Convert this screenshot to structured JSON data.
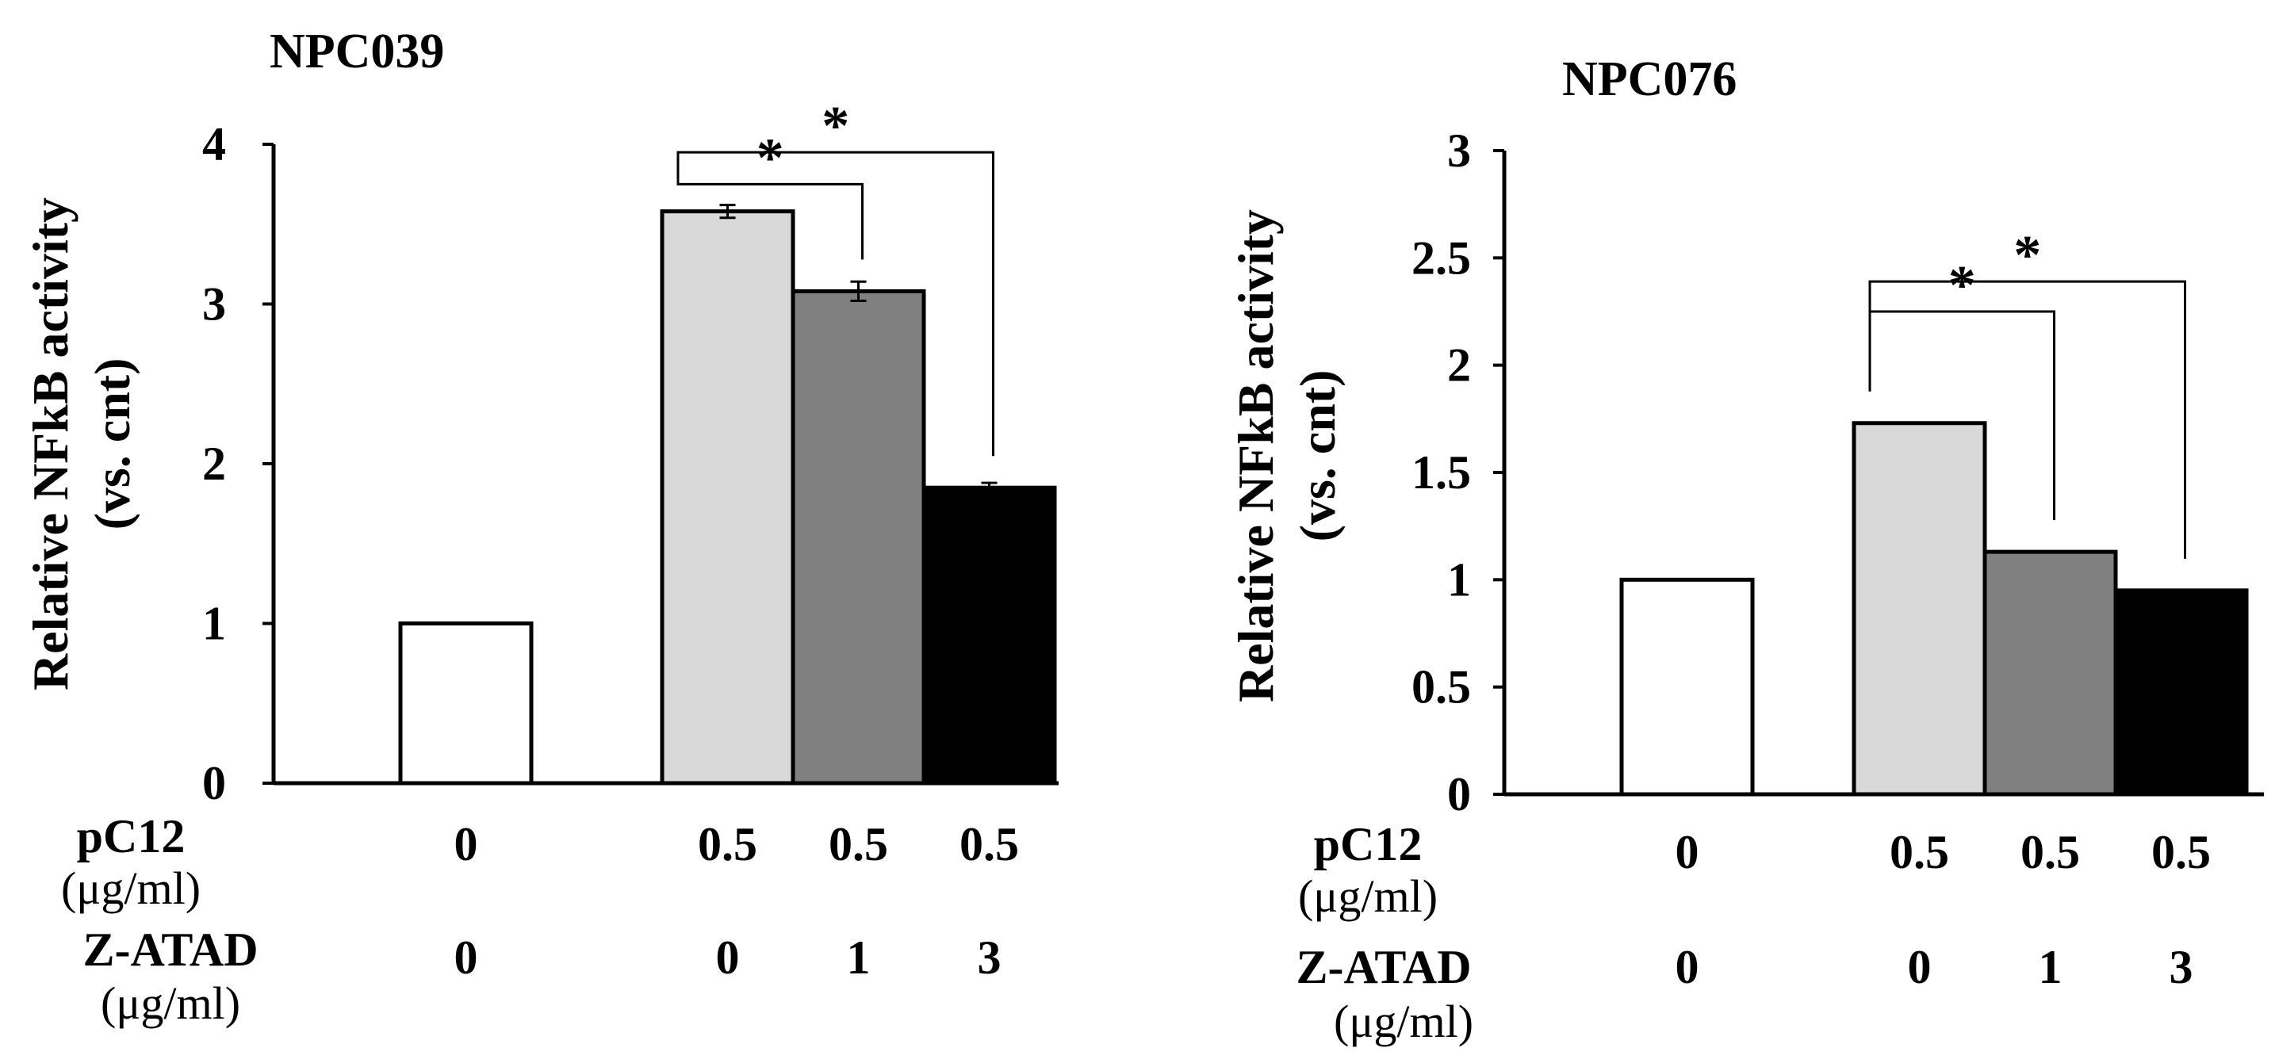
{
  "chart_data": [
    {
      "type": "bar",
      "title": "NPC039",
      "ylabel_line1": "Relative NFkB activity",
      "ylabel_line2": "(vs. cnt)",
      "ylim": [
        0,
        4
      ],
      "yticks": [
        "0",
        "1",
        "2",
        "3",
        "4"
      ],
      "bars": [
        {
          "name": "control",
          "value": 1.0,
          "error": 0,
          "color": "#ffffff"
        },
        {
          "name": "pC12 0.5",
          "value": 3.58,
          "error": 0.04,
          "color": "#d9d9d9"
        },
        {
          "name": "pC12 0.5 + Z-ATAD 1",
          "value": 3.08,
          "error": 0.06,
          "color": "#808080"
        },
        {
          "name": "pC12 0.5 + Z-ATAD 3",
          "value": 1.85,
          "error": 0.03,
          "color": "#000000"
        }
      ],
      "rows": [
        {
          "label": "pC12",
          "unit": "(μg/ml)",
          "values": [
            "0",
            "0.5",
            "0.5",
            "0.5"
          ]
        },
        {
          "label": "Z-ATAD",
          "unit": "(μg/ml)",
          "values": [
            "0",
            "0",
            "1",
            "3"
          ]
        }
      ],
      "significance": [
        {
          "from_bar": 1,
          "to_bar": 2,
          "label": "*",
          "level": 3.75
        },
        {
          "from_bar": 1,
          "to_bar": 3,
          "label": "*",
          "level": 3.95
        }
      ]
    },
    {
      "type": "bar",
      "title": "NPC076",
      "ylabel_line1": "Relative NFkB activity",
      "ylabel_line2": "(vs. cnt)",
      "ylim": [
        0,
        3
      ],
      "yticks": [
        "0",
        "0.5",
        "1",
        "1.5",
        "2",
        "2.5",
        "3"
      ],
      "bars": [
        {
          "name": "control",
          "value": 1.0,
          "error": 0,
          "color": "#ffffff"
        },
        {
          "name": "pC12 0.5",
          "value": 1.73,
          "error": 0,
          "color": "#d9d9d9"
        },
        {
          "name": "pC12 0.5 + Z-ATAD 1",
          "value": 1.13,
          "error": 0,
          "color": "#808080"
        },
        {
          "name": "pC12 0.5 + Z-ATAD 3",
          "value": 0.95,
          "error": 0,
          "color": "#000000"
        }
      ],
      "rows": [
        {
          "label": "pC12",
          "unit": "(μg/ml)",
          "values": [
            "0",
            "0.5",
            "0.5",
            "0.5"
          ]
        },
        {
          "label": "Z-ATAD",
          "unit": "(μg/ml)",
          "values": [
            "0",
            "0",
            "1",
            "3"
          ]
        }
      ],
      "significance": [
        {
          "from_bar": 1,
          "to_bar": 2,
          "label": "*",
          "level": 2.25
        },
        {
          "from_bar": 1,
          "to_bar": 3,
          "label": "*",
          "level": 2.39
        }
      ]
    }
  ]
}
